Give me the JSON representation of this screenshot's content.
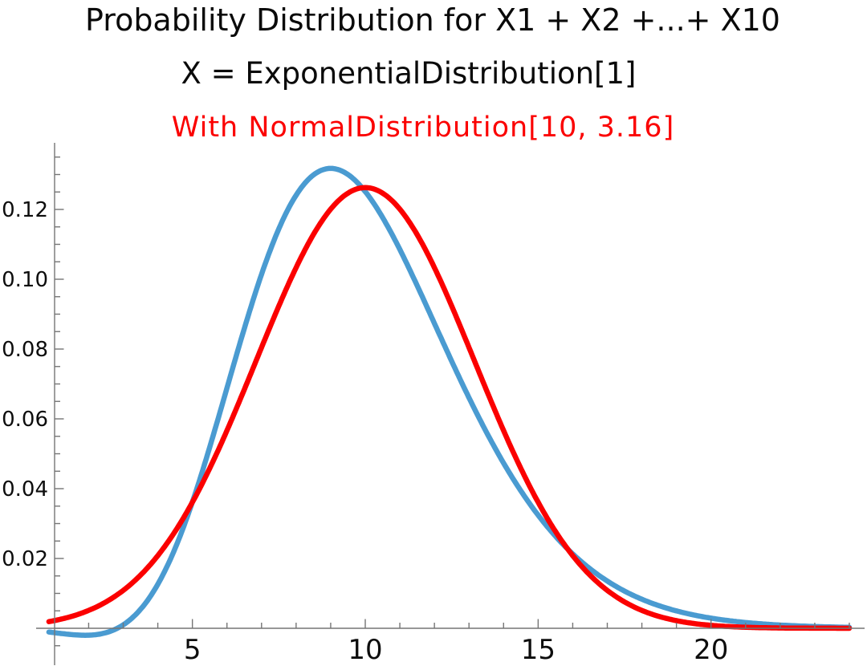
{
  "titles": {
    "line1": "Probability Distribution for X1 + X2 +...+ X10",
    "line2": "X = ExponentialDistribution[1]",
    "line3": "With NormalDistribution[10, 3.16]"
  },
  "colors": {
    "background": "#ffffff",
    "title_text": "#0a0a0a",
    "annotation_text": "#fb0000",
    "axis_line": "#757575",
    "tick_label": "#0d0d0d",
    "curve_sum_blue": "#4a9bd1",
    "curve_normal_red": "#fb0000"
  },
  "chart_data": {
    "type": "line",
    "title": "Probability Distribution for X1 + X2 +...+ X10",
    "subtitle": "X = ExponentialDistribution[1]",
    "annotation": "With NormalDistribution[10, 3.16]",
    "xlabel": "",
    "ylabel": "",
    "grid": false,
    "legend": "none",
    "x_axis_range": [
      0,
      24.4
    ],
    "y_axis_range": [
      -0.01,
      0.139
    ],
    "x_ticks_major": [
      5,
      10,
      15,
      20
    ],
    "x_tick_labels": [
      "5",
      "10",
      "15",
      "20"
    ],
    "x_minor_step": 1,
    "x_minor_range": [
      2,
      24
    ],
    "y_ticks_major": [
      0.02,
      0.04,
      0.06,
      0.08,
      0.1,
      0.12
    ],
    "y_tick_labels": [
      "0.02",
      "0.04",
      "0.06",
      "0.08",
      "0.10",
      "0.12"
    ],
    "y_minor_step": 0.005,
    "y_minor_range": [
      -0.005,
      0.135
    ],
    "draw_domain": [
      0.85,
      24
    ],
    "x_sample_points": [
      0,
      1,
      2,
      3,
      4,
      5,
      6,
      7,
      8,
      9,
      10,
      11,
      12,
      13,
      14,
      15,
      16,
      17,
      18,
      19,
      20,
      21,
      22,
      23,
      24
    ],
    "series": [
      {
        "name": "X1 + X2 +...+ X10, X = ExponentialDistribution[1]",
        "color": "#4a9bd1",
        "stroke_width": 6.5,
        "model": "erlang",
        "k": 10,
        "lambda": 1,
        "peak": {
          "x": 9,
          "y": 0.1318
        },
        "kde_dip": {
          "amplitude": -0.0022,
          "center": 2.2,
          "width": 1.6
        },
        "values": [
          0,
          1e-06,
          0.00019,
          0.0027,
          0.01323,
          0.03627,
          0.06884,
          0.10141,
          0.12408,
          0.13176,
          0.12511,
          0.10853,
          0.08737,
          0.06605,
          0.04734,
          0.03241,
          0.02131,
          0.01353,
          0.00833,
          0.00498,
          0.00291,
          0.00166,
          0.00093,
          0.00051,
          0.00027
        ]
      },
      {
        "name": "NormalDistribution[10, 3.16]",
        "color": "#fb0000",
        "stroke_width": 6.5,
        "model": "normal",
        "mu": 10,
        "sigma": 3.16,
        "peak": {
          "x": 10,
          "y": 0.1263
        },
        "values": [
          0.00084,
          0.00219,
          0.00512,
          0.01086,
          0.02082,
          0.03611,
          0.05666,
          0.08045,
          0.10334,
          0.12009,
          0.12625,
          0.12009,
          0.10334,
          0.08045,
          0.05666,
          0.03611,
          0.02082,
          0.01086,
          0.00512,
          0.00219,
          0.00084,
          0.00029,
          9e-05,
          3e-05,
          1e-05
        ]
      }
    ]
  }
}
